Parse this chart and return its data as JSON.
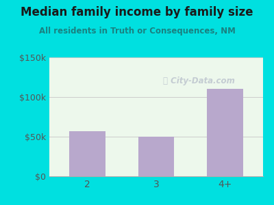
{
  "title": "Median family income by family size",
  "subtitle": "All residents in Truth or Consequences, NM",
  "categories": [
    "2",
    "3",
    "4+"
  ],
  "values": [
    57000,
    50000,
    110000
  ],
  "bar_color": "#b8a8cc",
  "ylim": [
    0,
    150000
  ],
  "yticks": [
    0,
    50000,
    100000,
    150000
  ],
  "ytick_labels": [
    "$0",
    "$50k",
    "$100k",
    "$150k"
  ],
  "outer_bg": "#00e0e0",
  "plot_bg": "#edf8ec",
  "title_color": "#1a1a1a",
  "subtitle_color": "#1a8080",
  "axis_color": "#555555",
  "watermark": "City-Data.com",
  "watermark_color": "#c0c8d0"
}
